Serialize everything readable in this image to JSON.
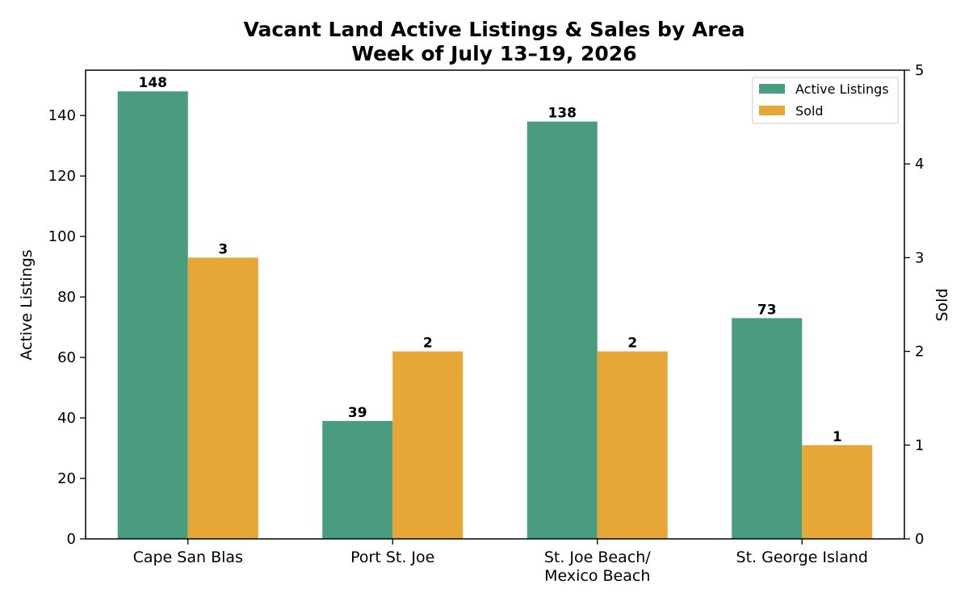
{
  "chart_data": {
    "type": "bar",
    "title": "Vacant Land Active Listings & Sales by Area",
    "subtitle": "Week of July 13–19, 2026",
    "categories": [
      [
        "Cape San Blas"
      ],
      [
        "Port St. Joe"
      ],
      [
        "St. Joe Beach/",
        "Mexico Beach"
      ],
      [
        "St. George Island"
      ]
    ],
    "series": [
      {
        "name": "Active Listings",
        "axis": "left",
        "color": "#4a9c7f",
        "values": [
          148,
          39,
          138,
          73
        ]
      },
      {
        "name": "Sold",
        "axis": "right",
        "color": "#e6a737",
        "values": [
          3,
          2,
          2,
          1
        ]
      }
    ],
    "ylabel": "Active Listings",
    "ylim": [
      0,
      155
    ],
    "yticks": [
      0,
      20,
      40,
      60,
      80,
      100,
      120,
      140
    ],
    "y2label": "Sold",
    "y2lim": [
      0,
      5
    ],
    "y2ticks": [
      0,
      1,
      2,
      3,
      4,
      5
    ],
    "legend_position": "top-right",
    "grid": false
  }
}
